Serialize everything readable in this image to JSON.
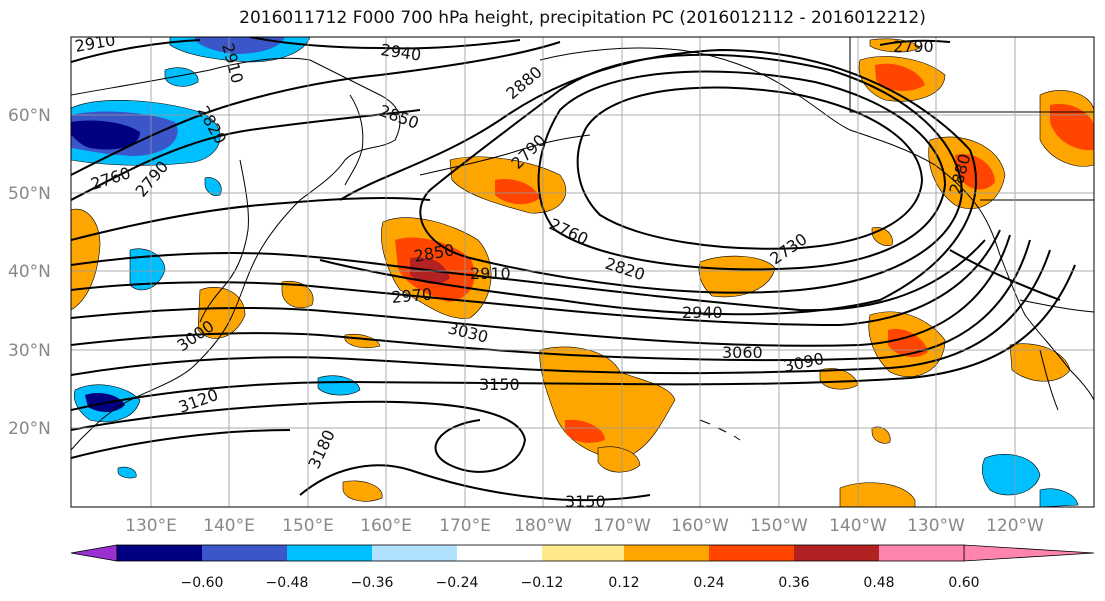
{
  "title": "2016011712 F000 700 hPa height, precipitation PC (2016012112 - 2016012212)",
  "map": {
    "lat_labels": [
      "60°N",
      "50°N",
      "40°N",
      "30°N",
      "20°N"
    ],
    "lon_labels": [
      "130°E",
      "140°E",
      "150°E",
      "160°E",
      "170°E",
      "180°W",
      "170°W",
      "160°W",
      "150°W",
      "140°W",
      "130°W",
      "120°W"
    ],
    "contour_labels": [
      "2910",
      "2910",
      "2940",
      "2880",
      "2820",
      "2850",
      "2790",
      "2760",
      "2790",
      "2760",
      "2820",
      "2730",
      "2880",
      "2850",
      "2910",
      "2970",
      "2940",
      "3030",
      "3000",
      "3060",
      "3090",
      "3120",
      "3150",
      "3180",
      "3150",
      "2790"
    ],
    "colors": {
      "neg_strong": "#000080",
      "neg_mid": "#3a56c8",
      "neg_light": "#00bfff",
      "neg_faint": "#b0e2ff",
      "pos_faint": "#ffe88a",
      "pos_light": "#ffa500",
      "pos_mid": "#ff4500",
      "pos_strong": "#b22222"
    }
  },
  "colorbar": {
    "tick_labels": [
      "−0.60",
      "−0.48",
      "−0.36",
      "−0.24",
      "−0.12",
      "0.12",
      "0.24",
      "0.36",
      "0.48",
      "0.60"
    ],
    "colors": [
      "#9b30d0",
      "#000080",
      "#3a56c8",
      "#00bfff",
      "#b0e2ff",
      "#ffffff",
      "#ffe88a",
      "#ffa500",
      "#ff4500",
      "#b22222",
      "#ff85b0"
    ]
  }
}
